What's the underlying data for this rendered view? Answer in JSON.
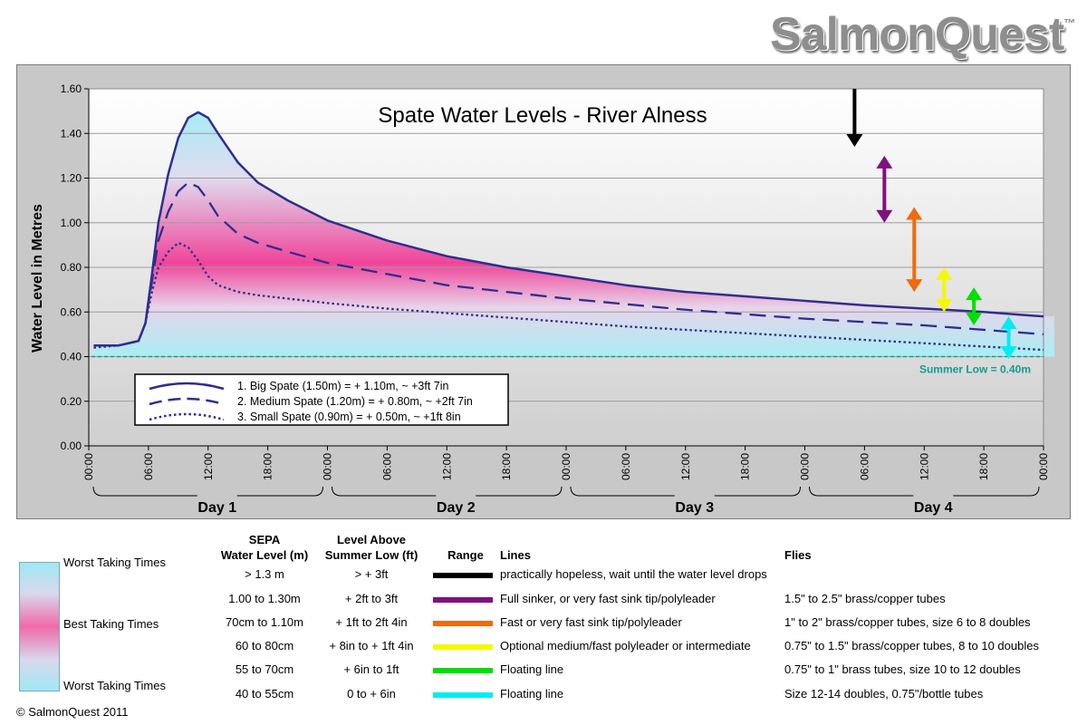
{
  "brand": {
    "name": "SalmonQuest",
    "tm": "™"
  },
  "copyright": "© SalmonQuest 2011",
  "chart_data": {
    "type": "line",
    "title": "Spate Water Levels - River Alness",
    "ylabel": "Water Level in Metres",
    "ylim": [
      0,
      1.6
    ],
    "yticks": [
      "0.00",
      "0.20",
      "0.40",
      "0.60",
      "0.80",
      "1.00",
      "1.20",
      "1.40",
      "1.60"
    ],
    "xlim": [
      0,
      96
    ],
    "xtick_labels": [
      "00:00",
      "06:00",
      "12:00",
      "18:00",
      "00:00",
      "06:00",
      "12:00",
      "18:00",
      "00:00",
      "06:00",
      "12:00",
      "18:00",
      "00:00",
      "06:00",
      "12:00",
      "18:00",
      "00:00"
    ],
    "day_labels": [
      "Day 1",
      "Day 2",
      "Day 3",
      "Day 4"
    ],
    "grid": true,
    "reference_line": {
      "label": "Summer Low = 0.40m",
      "value": 0.4,
      "color": "#149c8c"
    },
    "series": [
      {
        "name": "1. Big Spate (1.50m)  = + 1.10m, ~ +3ft 7in",
        "style": "solid",
        "color": "#2e2e8e",
        "x": [
          0.5,
          3,
          5,
          5.7,
          6.3,
          7,
          8,
          9,
          10,
          11,
          12,
          13,
          15,
          17,
          20,
          24,
          30,
          36,
          42,
          48,
          54,
          60,
          66,
          72,
          78,
          84,
          90,
          96
        ],
        "y": [
          0.45,
          0.45,
          0.47,
          0.55,
          0.75,
          1.0,
          1.22,
          1.38,
          1.47,
          1.495,
          1.47,
          1.4,
          1.27,
          1.18,
          1.1,
          1.01,
          0.92,
          0.85,
          0.8,
          0.76,
          0.72,
          0.69,
          0.67,
          0.65,
          0.63,
          0.615,
          0.6,
          0.58
        ]
      },
      {
        "name": "2. Medium Spate (1.20m)  = + 0.80m, ~ +2ft 7in",
        "style": "dashed",
        "color": "#2e2e8e",
        "x": [
          0.5,
          3,
          5,
          5.7,
          6.3,
          7,
          8,
          9,
          10,
          11,
          12,
          13,
          15,
          17,
          20,
          24,
          30,
          36,
          42,
          48,
          54,
          60,
          66,
          72,
          78,
          84,
          90,
          96
        ],
        "y": [
          0.45,
          0.45,
          0.47,
          0.55,
          0.72,
          0.92,
          1.05,
          1.14,
          1.18,
          1.16,
          1.1,
          1.03,
          0.95,
          0.91,
          0.87,
          0.82,
          0.77,
          0.72,
          0.69,
          0.66,
          0.635,
          0.61,
          0.59,
          0.57,
          0.555,
          0.54,
          0.52,
          0.5
        ]
      },
      {
        "name": "3. Small Spate (0.90m)  = + 0.50m, ~ +1ft 8in",
        "style": "dotted",
        "color": "#2e2e8e",
        "x": [
          0.5,
          3,
          5,
          5.7,
          6.3,
          7,
          8,
          9,
          10,
          11,
          12,
          13,
          15,
          17,
          20,
          24,
          30,
          36,
          42,
          48,
          54,
          60,
          66,
          72,
          78,
          84,
          90,
          96
        ],
        "y": [
          0.44,
          0.45,
          0.47,
          0.55,
          0.68,
          0.8,
          0.87,
          0.91,
          0.89,
          0.83,
          0.76,
          0.72,
          0.69,
          0.675,
          0.66,
          0.64,
          0.615,
          0.595,
          0.575,
          0.555,
          0.535,
          0.52,
          0.505,
          0.49,
          0.475,
          0.46,
          0.445,
          0.43
        ]
      }
    ],
    "range_arrows": [
      {
        "color": "#000000",
        "type": "down",
        "x": 77,
        "y_top": 1.6,
        "y_bottom": 1.34
      },
      {
        "color": "#80107e",
        "type": "double",
        "x": 80,
        "y_top": 1.3,
        "y_bottom": 1.0
      },
      {
        "color": "#f06a10",
        "type": "double",
        "x": 83,
        "y_top": 1.07,
        "y_bottom": 0.69
      },
      {
        "color": "#f7f700",
        "type": "double",
        "x": 86,
        "y_top": 0.8,
        "y_bottom": 0.6
      },
      {
        "color": "#00e000",
        "type": "double",
        "x": 89,
        "y_top": 0.71,
        "y_bottom": 0.54
      },
      {
        "color": "#00ecf4",
        "type": "double",
        "x": 92.5,
        "y_top": 0.58,
        "y_bottom": 0.39
      }
    ]
  },
  "key": {
    "gradient_labels": {
      "top": "Worst Taking Times",
      "middle": "Best Taking Times",
      "bottom": "Worst Taking Times"
    },
    "headers": {
      "sepa": "SEPA\nWater Level (m)",
      "above": "Level Above\nSummer Low (ft)",
      "range": "Range",
      "lines": "Lines",
      "flies": "Flies"
    },
    "rows": [
      {
        "sepa": "> 1.3 m",
        "above": "> + 3ft",
        "color": "#000000",
        "lines": "practically hopeless, wait until the water level drops",
        "flies": ""
      },
      {
        "sepa": "1.00 to 1.30m",
        "above": "+ 2ft to 3ft",
        "color": "#80107e",
        "lines": "Full sinker, or very fast sink tip/polyleader",
        "flies": "1.5\" to 2.5\" brass/copper tubes"
      },
      {
        "sepa": "70cm to 1.10m",
        "above": "+ 1ft to 2ft 4in",
        "color": "#f06a10",
        "lines": "Fast or very fast sink tip/polyleader",
        "flies": "1\" to 2\" brass/copper tubes, size 6 to 8 doubles"
      },
      {
        "sepa": "60 to 80cm",
        "above": "+ 8in to + 1ft 4in",
        "color": "#f7f700",
        "lines": "Optional medium/fast polyleader or intermediate",
        "flies": "0.75\" to 1.5\" brass/copper tubes, 8 to 10 doubles"
      },
      {
        "sepa": "55 to 70cm",
        "above": "+ 6in to 1ft",
        "color": "#00e000",
        "lines": "Floating line",
        "flies": "0.75\" to 1\" brass tubes, size 10 to 12 doubles"
      },
      {
        "sepa": "40 to 55cm",
        "above": "0 to + 6in",
        "color": "#00ecf4",
        "lines": "Floating line",
        "flies": "Size 12-14 doubles, 0.75\"/bottle tubes"
      }
    ]
  }
}
